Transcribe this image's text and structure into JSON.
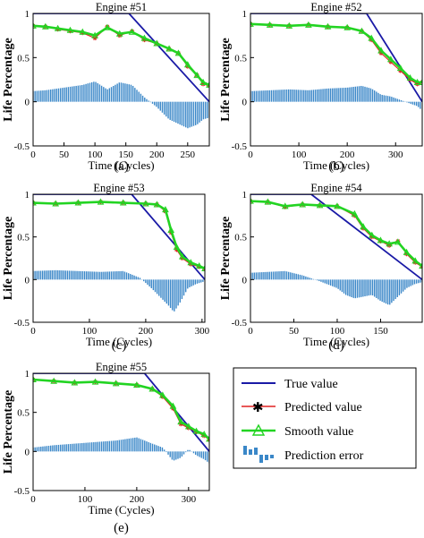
{
  "legend": {
    "true_value": "True value",
    "predicted_value": "Predicted value",
    "smooth_value": "Smooth value",
    "prediction_error": "Prediction error"
  },
  "colors": {
    "true": "#1a1aa6",
    "predicted": "#e02020",
    "smooth": "#22d422",
    "error": "#3a87c8",
    "axis": "#000000"
  },
  "chart_data": [
    {
      "type": "line",
      "title": "Engine #51",
      "panel_label": "(a)",
      "xlabel": "Time (Cycles)",
      "ylabel": "Life Percentage",
      "xlim": [
        0,
        285
      ],
      "ylim": [
        -0.5,
        1
      ],
      "x_ticks": [
        0,
        50,
        100,
        150,
        200,
        250
      ],
      "y_ticks": [
        -0.5,
        0,
        0.5,
        1
      ],
      "series": [
        {
          "name": "True value",
          "x": [
            0,
            155,
            285
          ],
          "y": [
            1,
            1,
            0
          ]
        },
        {
          "name": "Predicted value",
          "x": [
            0,
            20,
            40,
            60,
            80,
            100,
            120,
            140,
            160,
            180,
            200,
            220,
            235,
            250,
            265,
            275,
            285
          ],
          "y": [
            0.86,
            0.85,
            0.82,
            0.8,
            0.78,
            0.72,
            0.85,
            0.75,
            0.8,
            0.7,
            0.66,
            0.6,
            0.55,
            0.4,
            0.3,
            0.2,
            0.18
          ]
        },
        {
          "name": "Smooth value",
          "x": [
            0,
            20,
            40,
            60,
            80,
            100,
            120,
            140,
            160,
            180,
            200,
            220,
            235,
            250,
            265,
            275,
            285
          ],
          "y": [
            0.86,
            0.85,
            0.83,
            0.81,
            0.79,
            0.75,
            0.84,
            0.77,
            0.79,
            0.72,
            0.66,
            0.6,
            0.55,
            0.42,
            0.3,
            0.22,
            0.19
          ]
        },
        {
          "name": "Prediction error",
          "x": [
            0,
            20,
            40,
            60,
            80,
            100,
            120,
            140,
            160,
            180,
            200,
            220,
            235,
            250,
            265,
            275,
            285
          ],
          "y": [
            0.12,
            0.13,
            0.15,
            0.17,
            0.19,
            0.23,
            0.14,
            0.22,
            0.19,
            0.05,
            -0.06,
            -0.2,
            -0.25,
            -0.3,
            -0.26,
            -0.2,
            -0.18
          ]
        }
      ]
    },
    {
      "type": "line",
      "title": "Engine #52",
      "panel_label": "(b)",
      "xlabel": "Time (Cycles)",
      "ylabel": "Life Percentage",
      "xlim": [
        0,
        355
      ],
      "ylim": [
        -0.5,
        1
      ],
      "x_ticks": [
        0,
        100,
        200,
        300
      ],
      "y_ticks": [
        -0.5,
        0,
        0.5,
        1
      ],
      "series": [
        {
          "name": "True value",
          "x": [
            0,
            240,
            355
          ],
          "y": [
            1,
            1,
            0
          ]
        },
        {
          "name": "Predicted value",
          "x": [
            0,
            40,
            80,
            120,
            160,
            200,
            230,
            250,
            270,
            290,
            310,
            330,
            345,
            355
          ],
          "y": [
            0.88,
            0.87,
            0.86,
            0.87,
            0.85,
            0.84,
            0.8,
            0.7,
            0.55,
            0.45,
            0.35,
            0.25,
            0.2,
            0.22
          ]
        },
        {
          "name": "Smooth value",
          "x": [
            0,
            40,
            80,
            120,
            160,
            200,
            230,
            250,
            270,
            290,
            310,
            330,
            345,
            355
          ],
          "y": [
            0.88,
            0.87,
            0.86,
            0.87,
            0.85,
            0.84,
            0.8,
            0.72,
            0.58,
            0.48,
            0.38,
            0.27,
            0.22,
            0.22
          ]
        },
        {
          "name": "Prediction error",
          "x": [
            0,
            40,
            80,
            120,
            160,
            200,
            230,
            250,
            270,
            290,
            310,
            330,
            345,
            355
          ],
          "y": [
            0.12,
            0.13,
            0.14,
            0.13,
            0.15,
            0.16,
            0.18,
            0.15,
            0.08,
            0.06,
            0.02,
            -0.02,
            -0.05,
            -0.1
          ]
        }
      ]
    },
    {
      "type": "line",
      "title": "Engine #53",
      "panel_label": "(c)",
      "xlabel": "Time (Cycles)",
      "ylabel": "Life Percentage",
      "xlim": [
        0,
        305
      ],
      "ylim": [
        -0.5,
        1
      ],
      "x_ticks": [
        0,
        100,
        200,
        300
      ],
      "y_ticks": [
        -0.5,
        0,
        0.5,
        1
      ],
      "series": [
        {
          "name": "True value",
          "x": [
            0,
            175,
            305
          ],
          "y": [
            1,
            1,
            0
          ]
        },
        {
          "name": "Predicted value",
          "x": [
            0,
            40,
            80,
            120,
            160,
            200,
            220,
            235,
            245,
            255,
            265,
            280,
            295,
            305
          ],
          "y": [
            0.9,
            0.89,
            0.9,
            0.91,
            0.9,
            0.89,
            0.88,
            0.8,
            0.55,
            0.35,
            0.25,
            0.18,
            0.15,
            0.12
          ]
        },
        {
          "name": "Smooth value",
          "x": [
            0,
            40,
            80,
            120,
            160,
            200,
            220,
            235,
            245,
            255,
            265,
            280,
            295,
            305
          ],
          "y": [
            0.9,
            0.89,
            0.9,
            0.91,
            0.9,
            0.89,
            0.88,
            0.82,
            0.58,
            0.38,
            0.27,
            0.2,
            0.16,
            0.13
          ]
        },
        {
          "name": "Prediction error",
          "x": [
            0,
            40,
            80,
            120,
            160,
            190,
            210,
            225,
            240,
            250,
            260,
            275,
            290,
            305
          ],
          "y": [
            0.1,
            0.11,
            0.1,
            0.09,
            0.1,
            0.02,
            -0.1,
            -0.2,
            -0.3,
            -0.38,
            -0.28,
            -0.1,
            -0.05,
            -0.02
          ]
        }
      ]
    },
    {
      "type": "line",
      "title": "Engine #54",
      "panel_label": "(d)",
      "xlabel": "Time (Cycles)",
      "ylabel": "Life Percentage",
      "xlim": [
        0,
        198
      ],
      "ylim": [
        -0.5,
        1
      ],
      "x_ticks": [
        0,
        50,
        100,
        150
      ],
      "y_ticks": [
        -0.5,
        0,
        0.5,
        1
      ],
      "series": [
        {
          "name": "True value",
          "x": [
            0,
            70,
            198
          ],
          "y": [
            1,
            1,
            0
          ]
        },
        {
          "name": "Predicted value",
          "x": [
            0,
            20,
            40,
            60,
            80,
            100,
            120,
            130,
            140,
            150,
            160,
            170,
            180,
            190,
            198
          ],
          "y": [
            0.92,
            0.91,
            0.85,
            0.88,
            0.87,
            0.86,
            0.75,
            0.6,
            0.5,
            0.45,
            0.4,
            0.45,
            0.3,
            0.2,
            0.15
          ]
        },
        {
          "name": "Smooth value",
          "x": [
            0,
            20,
            40,
            60,
            80,
            100,
            120,
            130,
            140,
            150,
            160,
            170,
            180,
            190,
            198
          ],
          "y": [
            0.92,
            0.91,
            0.86,
            0.88,
            0.87,
            0.86,
            0.77,
            0.62,
            0.52,
            0.46,
            0.42,
            0.44,
            0.32,
            0.22,
            0.16
          ]
        },
        {
          "name": "Prediction error",
          "x": [
            0,
            20,
            40,
            60,
            80,
            100,
            110,
            120,
            130,
            140,
            150,
            160,
            170,
            180,
            190,
            198
          ],
          "y": [
            0.08,
            0.09,
            0.1,
            0.05,
            -0.02,
            -0.1,
            -0.18,
            -0.22,
            -0.2,
            -0.18,
            -0.25,
            -0.3,
            -0.2,
            -0.1,
            -0.05,
            -0.03
          ]
        }
      ]
    },
    {
      "type": "line",
      "title": "Engine #55",
      "panel_label": "(e)",
      "xlabel": "Time (Cycles)",
      "ylabel": "Life Percentage",
      "xlim": [
        0,
        340
      ],
      "ylim": [
        -0.5,
        1
      ],
      "x_ticks": [
        0,
        100,
        200,
        300
      ],
      "y_ticks": [
        -0.5,
        0,
        0.5,
        1
      ],
      "series": [
        {
          "name": "True value",
          "x": [
            0,
            215,
            340
          ],
          "y": [
            1,
            1,
            0
          ]
        },
        {
          "name": "Predicted value",
          "x": [
            0,
            40,
            80,
            120,
            160,
            200,
            230,
            250,
            270,
            285,
            300,
            315,
            330,
            340
          ],
          "y": [
            0.92,
            0.9,
            0.88,
            0.89,
            0.87,
            0.85,
            0.8,
            0.7,
            0.55,
            0.35,
            0.3,
            0.25,
            0.2,
            0.15
          ]
        },
        {
          "name": "Smooth value",
          "x": [
            0,
            40,
            80,
            120,
            160,
            200,
            230,
            250,
            270,
            285,
            300,
            315,
            330,
            340
          ],
          "y": [
            0.92,
            0.9,
            0.88,
            0.89,
            0.87,
            0.85,
            0.8,
            0.72,
            0.58,
            0.38,
            0.32,
            0.26,
            0.22,
            0.16
          ]
        },
        {
          "name": "Prediction error",
          "x": [
            0,
            40,
            80,
            120,
            160,
            200,
            230,
            250,
            270,
            285,
            300,
            315,
            330,
            340
          ],
          "y": [
            0.05,
            0.08,
            0.1,
            0.12,
            0.14,
            0.18,
            0.1,
            0.05,
            -0.12,
            -0.08,
            0.03,
            -0.05,
            -0.1,
            -0.15
          ]
        }
      ]
    }
  ]
}
